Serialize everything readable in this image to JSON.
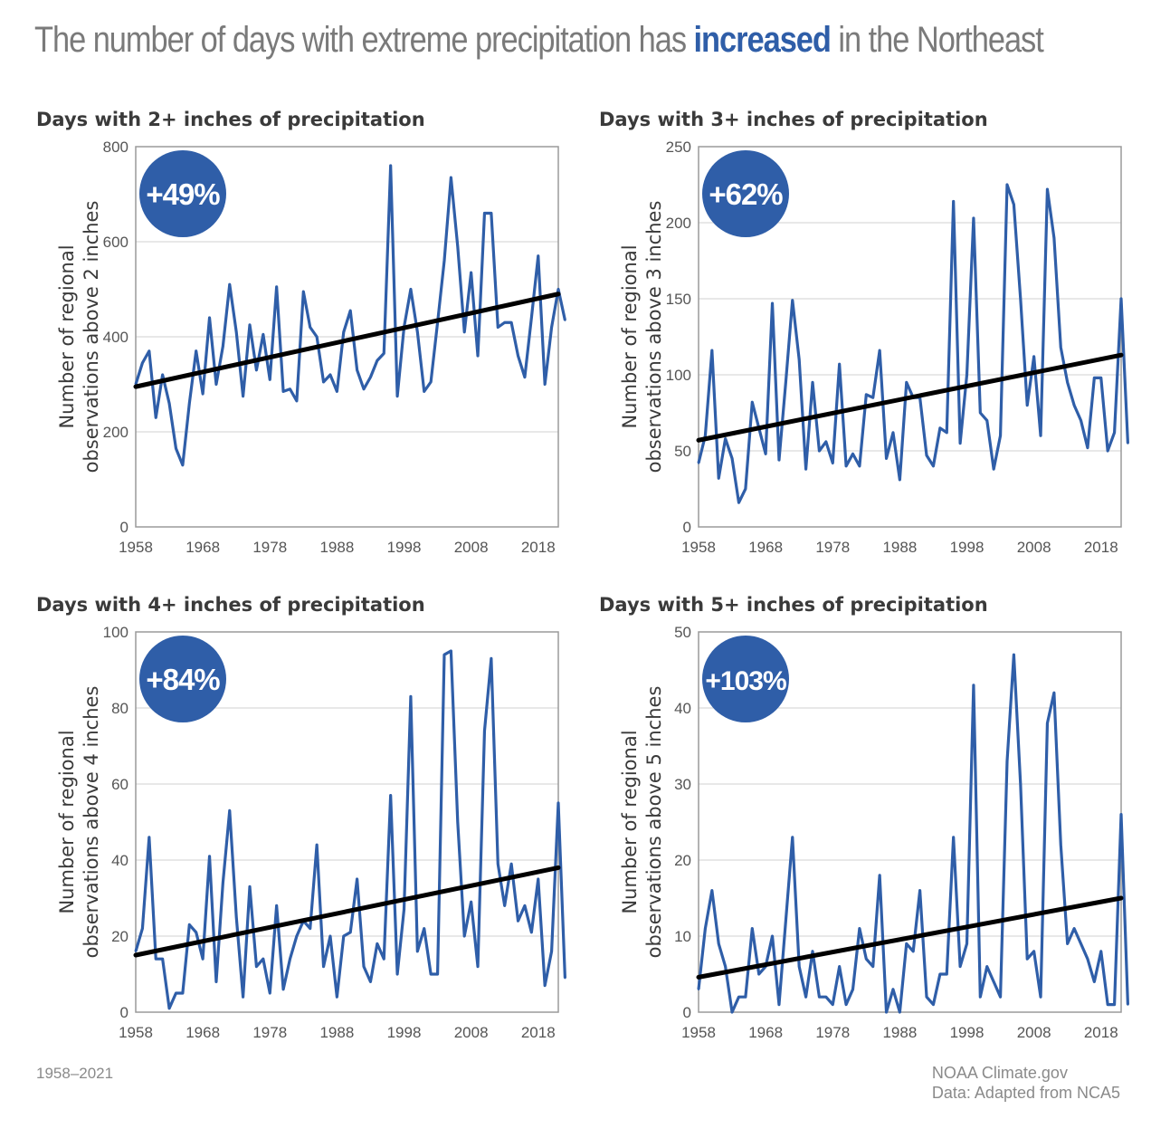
{
  "headline": {
    "before": "The number of days with extreme precipitation has",
    "accent": "increased",
    "after": "in the Northeast",
    "accent_color": "#2f5ea8"
  },
  "footer": {
    "period": "1958–2021",
    "credit": "NOAA Climate.gov",
    "source": "Data: Adapted from NCA5"
  },
  "colors": {
    "series": "#2f5ea8",
    "trend": "#000000",
    "grid": "#d9d9d9",
    "badge": "#2f5ea8"
  },
  "chart_data": [
    {
      "type": "line",
      "title": "Days with 2+ inches of precipitation",
      "badge": "+49%",
      "ylabel": [
        "Number of regional",
        "observations above 2 inches"
      ],
      "xlabel": "",
      "xlim": [
        1958,
        2021
      ],
      "ylim": [
        0,
        800
      ],
      "xticks": [
        1958,
        1968,
        1978,
        1988,
        1998,
        2008,
        2018
      ],
      "yticks": [
        0,
        200,
        400,
        600,
        800
      ],
      "grid": true,
      "trend": [
        295,
        490
      ],
      "x_start": 1958,
      "series": [
        {
          "values": [
            300,
            345,
            370,
            230,
            320,
            260,
            165,
            130,
            260,
            370,
            280,
            440,
            300,
            380,
            510,
            410,
            275,
            425,
            330,
            405,
            310,
            505,
            285,
            290,
            265,
            495,
            420,
            400,
            305,
            320,
            285,
            410,
            455,
            330,
            290,
            315,
            350,
            365,
            760,
            275,
            420,
            500,
            410,
            285,
            305,
            430,
            560,
            735,
            590,
            410,
            535,
            360,
            660,
            660,
            420,
            430,
            430,
            360,
            315,
            440,
            570,
            300,
            420,
            500,
            435
          ]
        }
      ]
    },
    {
      "type": "line",
      "title": "Days with 3+ inches of precipitation",
      "badge": "+62%",
      "ylabel": [
        "Number of regional",
        "observations above 3 inches"
      ],
      "xlabel": "",
      "xlim": [
        1958,
        2021
      ],
      "ylim": [
        0,
        250
      ],
      "xticks": [
        1958,
        1968,
        1978,
        1988,
        1998,
        2008,
        2018
      ],
      "yticks": [
        0,
        50,
        100,
        150,
        200,
        250
      ],
      "grid": true,
      "trend": [
        57,
        113
      ],
      "x_start": 1958,
      "series": [
        {
          "values": [
            42,
            60,
            116,
            32,
            58,
            45,
            16,
            25,
            82,
            65,
            48,
            147,
            44,
            95,
            149,
            110,
            38,
            95,
            50,
            56,
            42,
            107,
            40,
            48,
            40,
            87,
            85,
            116,
            45,
            62,
            31,
            95,
            85,
            85,
            47,
            40,
            65,
            62,
            214,
            55,
            100,
            203,
            75,
            70,
            38,
            60,
            225,
            212,
            150,
            80,
            112,
            60,
            222,
            190,
            118,
            95,
            80,
            70,
            52,
            98,
            98,
            50,
            62,
            150,
            55
          ]
        }
      ]
    },
    {
      "type": "line",
      "title": "Days with 4+ inches of precipitation",
      "badge": "+84%",
      "ylabel": [
        "Number of regional",
        "observations above 4 inches"
      ],
      "xlabel": "",
      "xlim": [
        1958,
        2021
      ],
      "ylim": [
        0,
        100
      ],
      "xticks": [
        1958,
        1968,
        1978,
        1988,
        1998,
        2008,
        2018
      ],
      "yticks": [
        0,
        20,
        40,
        60,
        80,
        100
      ],
      "grid": true,
      "trend": [
        15,
        38
      ],
      "x_start": 1958,
      "series": [
        {
          "values": [
            16,
            22,
            46,
            14,
            14,
            1,
            5,
            5,
            23,
            21,
            14,
            41,
            8,
            34,
            53,
            25,
            4,
            33,
            12,
            14,
            5,
            28,
            6,
            14,
            20,
            24,
            22,
            44,
            12,
            20,
            4,
            20,
            21,
            35,
            12,
            8,
            18,
            14,
            57,
            10,
            27,
            83,
            16,
            22,
            10,
            10,
            94,
            95,
            50,
            20,
            29,
            12,
            74,
            93,
            39,
            28,
            39,
            24,
            28,
            21,
            35,
            7,
            16,
            55,
            9
          ]
        }
      ]
    },
    {
      "type": "line",
      "title": "Days with 5+ inches of precipitation",
      "badge": "+103%",
      "ylabel": [
        "Number of regional",
        "observations above 5 inches"
      ],
      "xlabel": "",
      "xlim": [
        1958,
        2021
      ],
      "ylim": [
        0,
        50
      ],
      "xticks": [
        1958,
        1968,
        1978,
        1988,
        1998,
        2008,
        2018
      ],
      "yticks": [
        0,
        10,
        20,
        30,
        40,
        50
      ],
      "grid": true,
      "trend": [
        4.6,
        15
      ],
      "x_start": 1958,
      "series": [
        {
          "values": [
            3,
            11,
            16,
            9,
            6,
            0,
            2,
            2,
            11,
            5,
            6,
            10,
            1,
            12,
            23,
            6,
            2,
            8,
            2,
            2,
            1,
            6,
            1,
            3,
            11,
            7,
            6,
            18,
            0,
            3,
            0,
            9,
            8,
            16,
            2,
            1,
            5,
            5,
            23,
            6,
            9,
            43,
            2,
            6,
            4,
            2,
            33,
            47,
            30,
            7,
            8,
            2,
            38,
            42,
            22,
            9,
            11,
            9,
            7,
            4,
            8,
            1,
            1,
            26,
            1
          ]
        }
      ]
    }
  ]
}
